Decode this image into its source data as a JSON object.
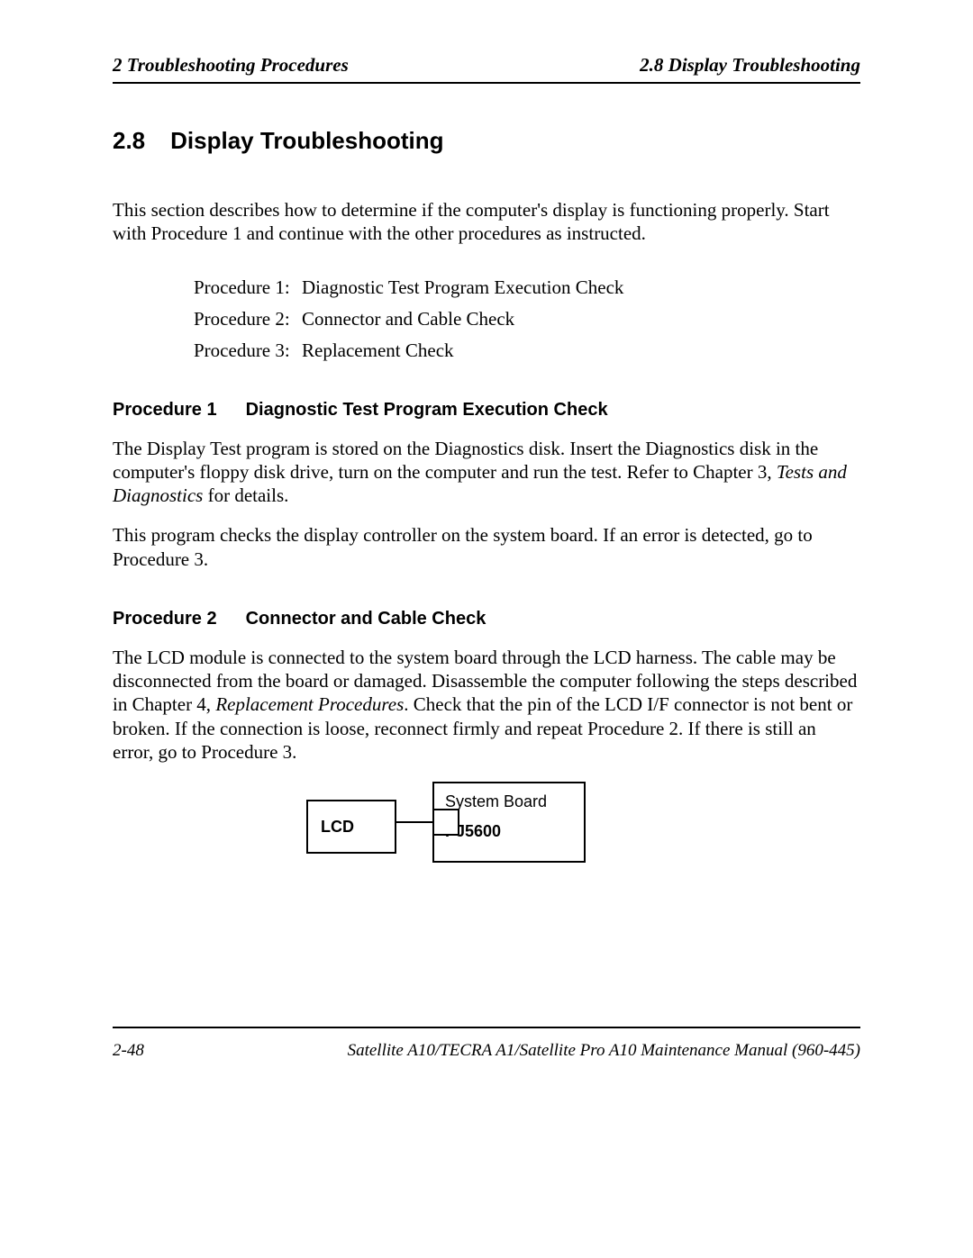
{
  "header": {
    "left": "2  Troubleshooting Procedures",
    "right": "2.8  Display Troubleshooting"
  },
  "section": {
    "number": "2.8",
    "title": "Display Troubleshooting"
  },
  "intro": "This section describes how to determine if the computer's display is functioning properly. Start with Procedure 1 and continue with the other procedures as instructed.",
  "procedures": [
    {
      "label": "Procedure 1:",
      "title": "Diagnostic Test Program Execution Check"
    },
    {
      "label": "Procedure 2:",
      "title": "Connector and Cable Check"
    },
    {
      "label": "Procedure 3:",
      "title": "Replacement Check"
    }
  ],
  "proc1": {
    "heading_num": "Procedure 1",
    "heading_title": "Diagnostic Test Program Execution Check",
    "para1_a": "The Display Test program is stored on the Diagnostics disk. Insert the Diagnostics disk in the computer's floppy disk drive, turn on the computer and run the test. Refer to Chapter 3, ",
    "para1_ital": "Tests and Diagnostics",
    "para1_b": " for details.",
    "para2": "This program checks the display controller on the system board. If an error is detected, go to Procedure 3."
  },
  "proc2": {
    "heading_num": "Procedure 2",
    "heading_title": "Connector and Cable Check",
    "para_a": "The LCD module is connected to the system board through the LCD harness. The cable may be disconnected from the board or damaged. Disassemble the computer following the steps described in Chapter 4, ",
    "para_ital": "Replacement Procedures",
    "para_b": ". Check that the pin of the LCD I/F connector is not bent or broken. If the connection is loose, reconnect firmly and repeat Procedure 2. If there is still an error, go to Procedure 3."
  },
  "diagram": {
    "lcd_label": "LCD",
    "system_board_label": "System Board",
    "connector_label": "PJ5600"
  },
  "footer": {
    "page": "2-48",
    "manual": "Satellite A10/TECRA A1/Satellite Pro A10  Maintenance Manual (960-445)"
  }
}
